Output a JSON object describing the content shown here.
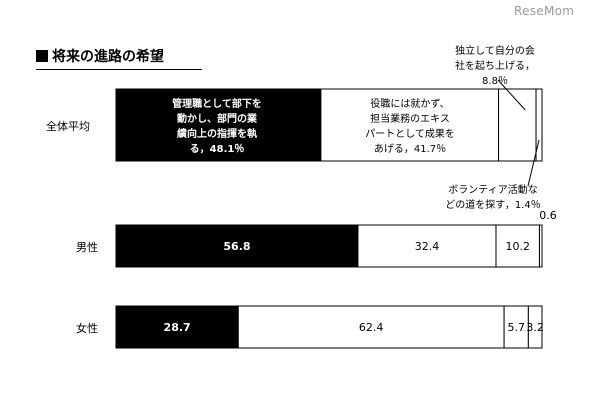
{
  "watermark": "ReseMom",
  "title": "将来の進路の希望",
  "chart_data": {
    "type": "bar",
    "orientation": "horizontal",
    "stacked": true,
    "percent": true,
    "categories": [
      "全体平均",
      "男性",
      "女性"
    ],
    "series": [
      {
        "values": [
          48.1,
          56.8,
          28.7
        ],
        "color": "#000000"
      },
      {
        "values": [
          41.7,
          32.4,
          62.4
        ],
        "color": "#ffffff"
      },
      {
        "values": [
          8.8,
          10.2,
          5.7
        ],
        "color": "#ffffff"
      },
      {
        "values": [
          1.4,
          0.6,
          3.2
        ],
        "color": "#ffffff"
      }
    ],
    "value_labels": [
      [],
      [
        "56.8",
        "32.4",
        "10.2",
        "0.6"
      ],
      [
        "28.7",
        "62.4",
        "5.7",
        "3.2"
      ]
    ],
    "category_descriptions": {
      "seg1": [
        "管理職として部下を",
        "動かし、部門の業",
        "績向上の指揮を執",
        "る，48.1％"
      ],
      "seg2": [
        "役職には就かず、",
        "担当業務のエキス",
        "パートとして成果を",
        "あげる，41.7％"
      ],
      "seg3": [
        "独立して自分の会",
        "社を起ち上げる，",
        "8.8％"
      ],
      "seg4": [
        "ボランティア活動な",
        "どの道を探す，1.4％"
      ]
    },
    "grid": false,
    "legend": "none"
  }
}
